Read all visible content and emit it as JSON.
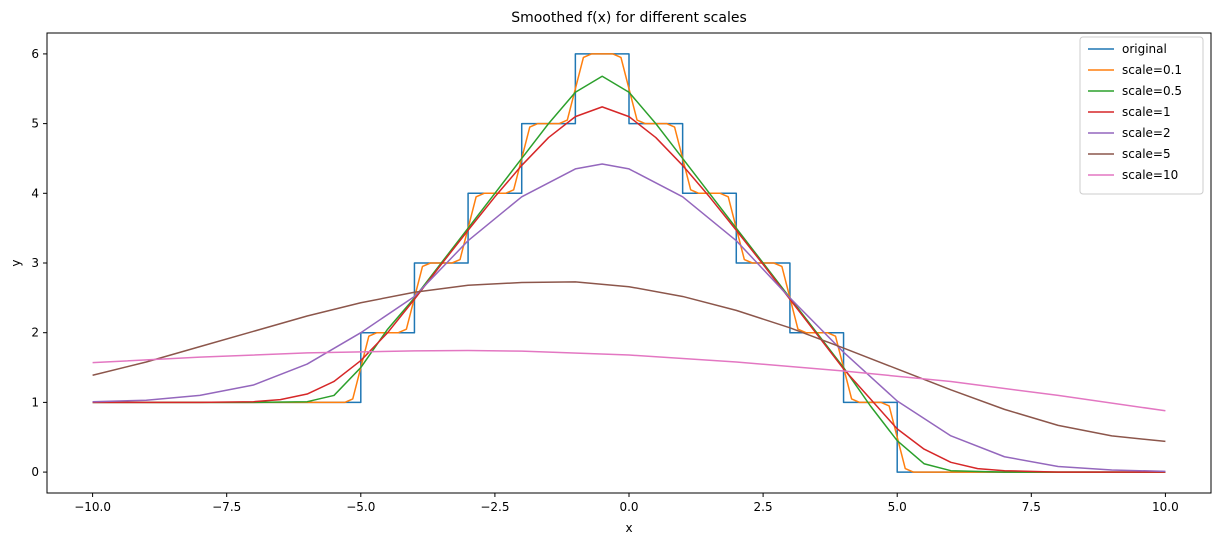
{
  "chart_data": {
    "type": "line",
    "title": "Smoothed f(x) for different scales",
    "xlabel": "x",
    "ylabel": "y",
    "xlim": [
      -10.85,
      10.85
    ],
    "ylim": [
      -0.3,
      6.3
    ],
    "xticks": [
      -10.0,
      -7.5,
      -5.0,
      -2.5,
      0.0,
      2.5,
      5.0,
      7.5,
      10.0
    ],
    "xtick_labels": [
      "−10.0",
      "−7.5",
      "−5.0",
      "−2.5",
      "0.0",
      "2.5",
      "5.0",
      "7.5",
      "10.0"
    ],
    "yticks": [
      0,
      1,
      2,
      3,
      4,
      5,
      6
    ],
    "ytick_labels": [
      "0",
      "1",
      "2",
      "3",
      "4",
      "5",
      "6"
    ],
    "grid": false,
    "legend_position": "top-right",
    "series": [
      {
        "name": "original",
        "color": "#1f77b4",
        "points": [
          [
            -10,
            1
          ],
          [
            -5,
            1
          ],
          [
            -5,
            2
          ],
          [
            -4,
            2
          ],
          [
            -4,
            3
          ],
          [
            -3,
            3
          ],
          [
            -3,
            4
          ],
          [
            -2,
            4
          ],
          [
            -2,
            5
          ],
          [
            -1,
            5
          ],
          [
            -1,
            6
          ],
          [
            0,
            6
          ],
          [
            0,
            5
          ],
          [
            1,
            5
          ],
          [
            1,
            4
          ],
          [
            2,
            4
          ],
          [
            2,
            3
          ],
          [
            3,
            3
          ],
          [
            3,
            2
          ],
          [
            4,
            2
          ],
          [
            4,
            1
          ],
          [
            5,
            1
          ],
          [
            5,
            0
          ],
          [
            10,
            0
          ]
        ]
      },
      {
        "name": "scale=0.1",
        "color": "#ff7f0e",
        "points": [
          [
            -10,
            1
          ],
          [
            -5.3,
            1
          ],
          [
            -5.15,
            1.05
          ],
          [
            -5,
            1.5
          ],
          [
            -4.85,
            1.95
          ],
          [
            -4.7,
            2
          ],
          [
            -4.3,
            2
          ],
          [
            -4.15,
            2.05
          ],
          [
            -4,
            2.5
          ],
          [
            -3.85,
            2.95
          ],
          [
            -3.7,
            3
          ],
          [
            -3.3,
            3
          ],
          [
            -3.15,
            3.05
          ],
          [
            -3,
            3.5
          ],
          [
            -2.85,
            3.95
          ],
          [
            -2.7,
            4
          ],
          [
            -2.3,
            4
          ],
          [
            -2.15,
            4.05
          ],
          [
            -2,
            4.5
          ],
          [
            -1.85,
            4.95
          ],
          [
            -1.7,
            5
          ],
          [
            -1.3,
            5
          ],
          [
            -1.15,
            5.05
          ],
          [
            -1,
            5.5
          ],
          [
            -0.85,
            5.95
          ],
          [
            -0.7,
            6
          ],
          [
            -0.3,
            6
          ],
          [
            -0.15,
            5.95
          ],
          [
            0,
            5.5
          ],
          [
            0.15,
            5.05
          ],
          [
            0.3,
            5
          ],
          [
            0.7,
            5
          ],
          [
            0.85,
            4.95
          ],
          [
            1,
            4.5
          ],
          [
            1.15,
            4.05
          ],
          [
            1.3,
            4
          ],
          [
            1.7,
            4
          ],
          [
            1.85,
            3.95
          ],
          [
            2,
            3.5
          ],
          [
            2.15,
            3.05
          ],
          [
            2.3,
            3
          ],
          [
            2.7,
            3
          ],
          [
            2.85,
            2.95
          ],
          [
            3,
            2.5
          ],
          [
            3.15,
            2.05
          ],
          [
            3.3,
            2
          ],
          [
            3.7,
            2
          ],
          [
            3.85,
            1.95
          ],
          [
            4,
            1.5
          ],
          [
            4.15,
            1.05
          ],
          [
            4.3,
            1
          ],
          [
            4.7,
            1
          ],
          [
            4.85,
            0.95
          ],
          [
            5,
            0.5
          ],
          [
            5.15,
            0.05
          ],
          [
            5.3,
            0
          ],
          [
            10,
            0
          ]
        ]
      },
      {
        "name": "scale=0.5",
        "color": "#2ca02c",
        "points": [
          [
            -10,
            1
          ],
          [
            -7,
            1
          ],
          [
            -6,
            1.01
          ],
          [
            -5.5,
            1.1
          ],
          [
            -5,
            1.5
          ],
          [
            -4.5,
            2.05
          ],
          [
            -4,
            2.5
          ],
          [
            -3.5,
            3.0
          ],
          [
            -3,
            3.5
          ],
          [
            -2.5,
            4.0
          ],
          [
            -2,
            4.5
          ],
          [
            -1.5,
            5.0
          ],
          [
            -1,
            5.45
          ],
          [
            -0.5,
            5.68
          ],
          [
            0,
            5.45
          ],
          [
            0.5,
            5.0
          ],
          [
            1,
            4.5
          ],
          [
            1.5,
            4.0
          ],
          [
            2,
            3.5
          ],
          [
            2.5,
            3.0
          ],
          [
            3,
            2.5
          ],
          [
            3.5,
            2.0
          ],
          [
            4,
            1.5
          ],
          [
            4.5,
            0.95
          ],
          [
            5,
            0.45
          ],
          [
            5.5,
            0.12
          ],
          [
            6,
            0.02
          ],
          [
            7,
            0
          ],
          [
            10,
            0
          ]
        ]
      },
      {
        "name": "scale=1",
        "color": "#d62728",
        "points": [
          [
            -10,
            1
          ],
          [
            -8,
            1
          ],
          [
            -7,
            1.01
          ],
          [
            -6.5,
            1.04
          ],
          [
            -6,
            1.12
          ],
          [
            -5.5,
            1.3
          ],
          [
            -5,
            1.6
          ],
          [
            -4.5,
            2.0
          ],
          [
            -4,
            2.48
          ],
          [
            -3.5,
            2.98
          ],
          [
            -3,
            3.47
          ],
          [
            -2.5,
            3.95
          ],
          [
            -2,
            4.4
          ],
          [
            -1.5,
            4.8
          ],
          [
            -1,
            5.1
          ],
          [
            -0.5,
            5.24
          ],
          [
            0,
            5.1
          ],
          [
            0.5,
            4.8
          ],
          [
            1,
            4.4
          ],
          [
            1.5,
            3.95
          ],
          [
            2,
            3.47
          ],
          [
            2.5,
            2.98
          ],
          [
            3,
            2.48
          ],
          [
            3.5,
            1.98
          ],
          [
            4,
            1.48
          ],
          [
            4.5,
            1.05
          ],
          [
            5,
            0.62
          ],
          [
            5.5,
            0.33
          ],
          [
            6,
            0.14
          ],
          [
            6.5,
            0.05
          ],
          [
            7,
            0.02
          ],
          [
            8,
            0
          ],
          [
            10,
            0
          ]
        ]
      },
      {
        "name": "scale=2",
        "color": "#9467bd",
        "points": [
          [
            -10,
            1.01
          ],
          [
            -9,
            1.03
          ],
          [
            -8,
            1.1
          ],
          [
            -7,
            1.25
          ],
          [
            -6,
            1.55
          ],
          [
            -5,
            2.0
          ],
          [
            -4,
            2.52
          ],
          [
            -3,
            3.32
          ],
          [
            -2,
            3.95
          ],
          [
            -1,
            4.35
          ],
          [
            -0.5,
            4.42
          ],
          [
            0,
            4.35
          ],
          [
            1,
            3.95
          ],
          [
            2,
            3.32
          ],
          [
            3,
            2.5
          ],
          [
            4,
            1.72
          ],
          [
            5,
            1.02
          ],
          [
            6,
            0.52
          ],
          [
            7,
            0.22
          ],
          [
            8,
            0.08
          ],
          [
            9,
            0.03
          ],
          [
            10,
            0.01
          ]
        ]
      },
      {
        "name": "scale=5",
        "color": "#8c564b",
        "points": [
          [
            -10,
            1.39
          ],
          [
            -9,
            1.58
          ],
          [
            -8,
            1.8
          ],
          [
            -7,
            2.02
          ],
          [
            -6,
            2.24
          ],
          [
            -5,
            2.43
          ],
          [
            -4,
            2.58
          ],
          [
            -3,
            2.68
          ],
          [
            -2,
            2.72
          ],
          [
            -1,
            2.73
          ],
          [
            0,
            2.66
          ],
          [
            1,
            2.52
          ],
          [
            2,
            2.32
          ],
          [
            3,
            2.07
          ],
          [
            4,
            1.78
          ],
          [
            5,
            1.48
          ],
          [
            6,
            1.18
          ],
          [
            7,
            0.9
          ],
          [
            8,
            0.67
          ],
          [
            9,
            0.52
          ],
          [
            10,
            0.44
          ]
        ]
      },
      {
        "name": "scale=10",
        "color": "#e377c2",
        "points": [
          [
            -10,
            1.57
          ],
          [
            -8,
            1.65
          ],
          [
            -6,
            1.71
          ],
          [
            -4,
            1.74
          ],
          [
            -3,
            1.745
          ],
          [
            -2,
            1.735
          ],
          [
            0,
            1.68
          ],
          [
            2,
            1.58
          ],
          [
            4,
            1.45
          ],
          [
            6,
            1.3
          ],
          [
            8,
            1.1
          ],
          [
            10,
            0.88
          ]
        ]
      }
    ]
  }
}
